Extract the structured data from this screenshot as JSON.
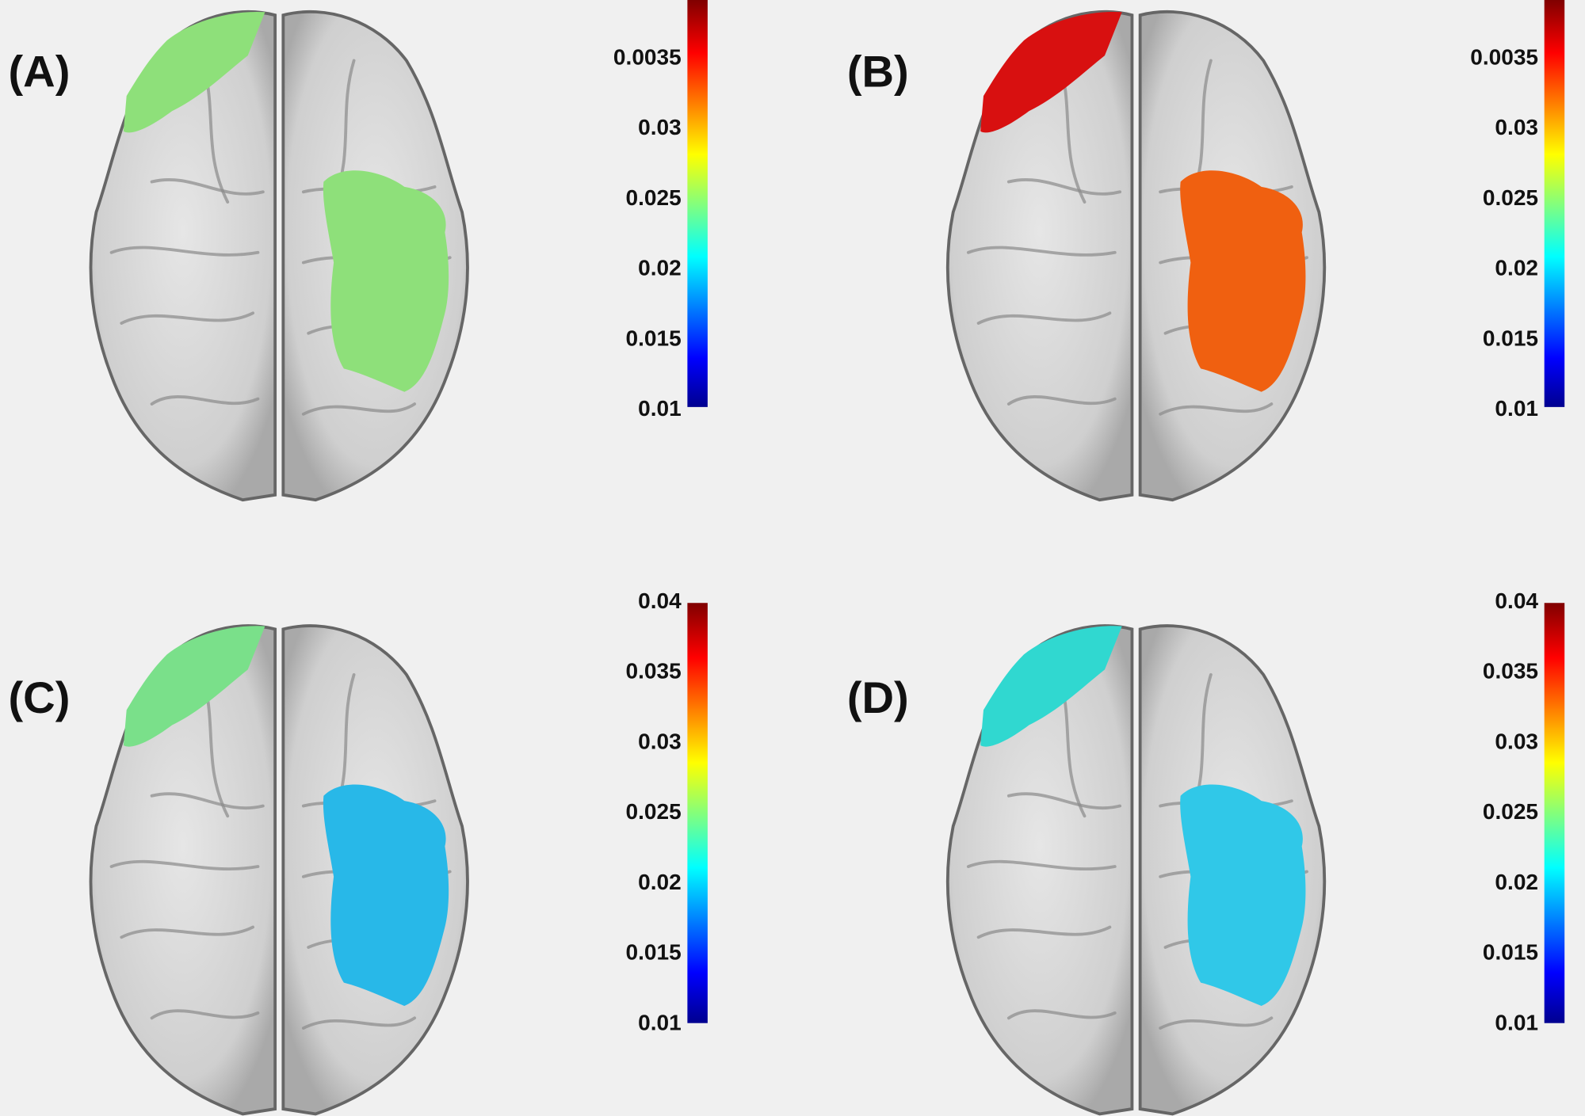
{
  "panels": [
    {
      "label": "(A)",
      "colorbar_ticks": [
        "0.0035",
        "0.03",
        "0.025",
        "0.02",
        "0.015",
        "0.01"
      ]
    },
    {
      "label": "(B)",
      "colorbar_ticks": [
        "0.0035",
        "0.03",
        "0.025",
        "0.02",
        "0.015",
        "0.01"
      ]
    },
    {
      "label": "(C)",
      "colorbar_ticks": [
        "0.04",
        "0.035",
        "0.03",
        "0.025",
        "0.02",
        "0.015",
        "0.01"
      ]
    },
    {
      "label": "(D)",
      "colorbar_ticks": [
        "0.04",
        "0.035",
        "0.03",
        "0.025",
        "0.02",
        "0.015",
        "0.01"
      ]
    }
  ]
}
